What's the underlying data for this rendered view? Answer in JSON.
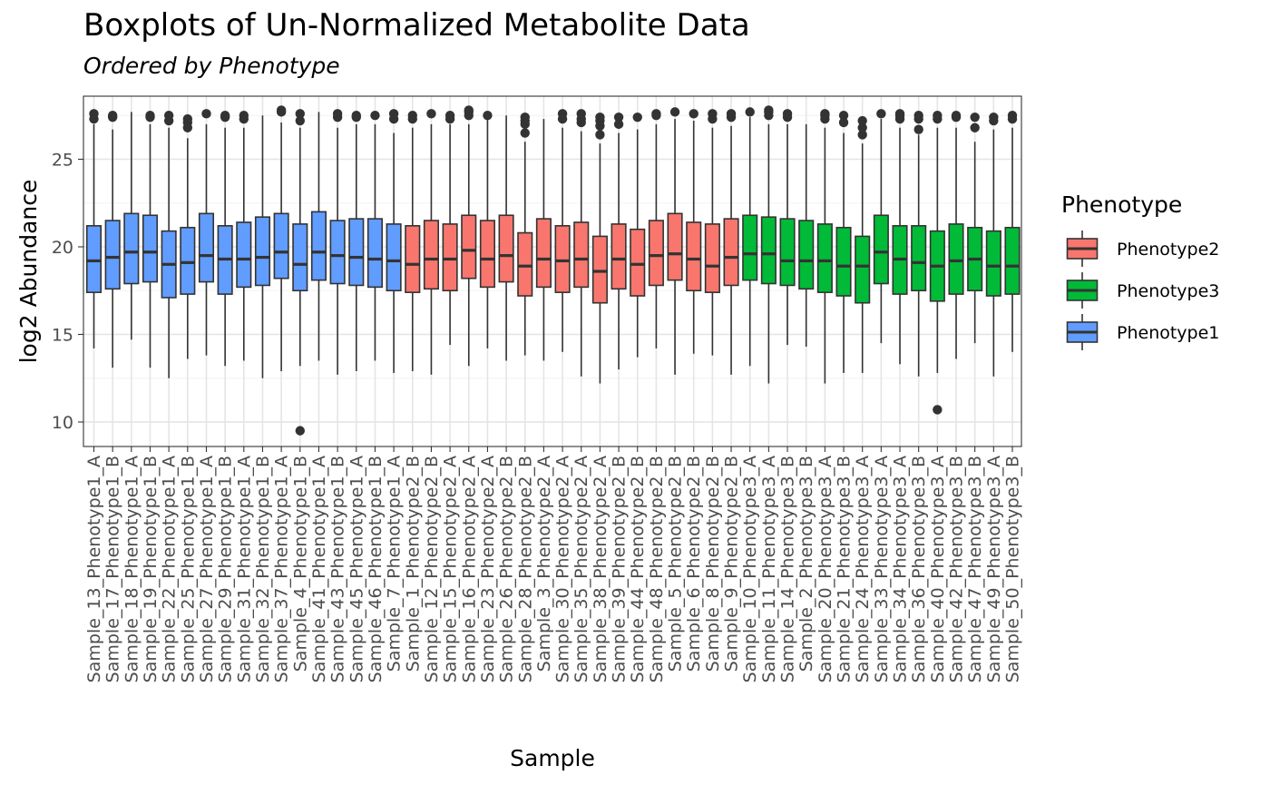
{
  "chart_data": {
    "type": "box",
    "title": "Boxplots of Un-Normalized Metabolite Data",
    "subtitle": "Ordered by  Phenotype",
    "xlabel": "Sample",
    "ylabel": "log2 Abundance",
    "ylim": [
      8.6,
      28.6
    ],
    "yticks": [
      10,
      15,
      20,
      25
    ],
    "grid": true,
    "legend": {
      "title": "Phenotype",
      "position": "right",
      "entries": [
        {
          "label": "Phenotype2",
          "color": "#F8766D"
        },
        {
          "label": "Phenotype3",
          "color": "#00BA38"
        },
        {
          "label": "Phenotype1",
          "color": "#619CFF"
        }
      ]
    },
    "colors": {
      "Phenotype1": "#619CFF",
      "Phenotype2": "#F8766D",
      "Phenotype3": "#00BA38"
    },
    "boxes": [
      {
        "label": "Sample_13_Phenotype1_A",
        "group": "Phenotype1",
        "min": 14.2,
        "q1": 17.4,
        "median": 19.2,
        "q3": 21.2,
        "max": 27.0,
        "outliers": [
          27.3,
          27.6
        ]
      },
      {
        "label": "Sample_17_Phenotype1_B",
        "group": "Phenotype1",
        "min": 13.1,
        "q1": 17.6,
        "median": 19.4,
        "q3": 21.5,
        "max": 26.7,
        "outliers": [
          27.4,
          27.5
        ]
      },
      {
        "label": "Sample_18_Phenotype1_A",
        "group": "Phenotype1",
        "min": 14.7,
        "q1": 17.9,
        "median": 19.7,
        "q3": 21.9,
        "max": 27.7,
        "outliers": []
      },
      {
        "label": "Sample_19_Phenotype1_B",
        "group": "Phenotype1",
        "min": 13.1,
        "q1": 18.0,
        "median": 19.7,
        "q3": 21.8,
        "max": 27.0,
        "outliers": [
          27.4,
          27.5
        ]
      },
      {
        "label": "Sample_22_Phenotype1_A",
        "group": "Phenotype1",
        "min": 12.5,
        "q1": 17.1,
        "median": 19.0,
        "q3": 20.9,
        "max": 26.8,
        "outliers": [
          27.2,
          27.5
        ]
      },
      {
        "label": "Sample_25_Phenotype1_B",
        "group": "Phenotype1",
        "min": 13.6,
        "q1": 17.3,
        "median": 19.1,
        "q3": 21.1,
        "max": 26.2,
        "outliers": [
          26.8,
          27.1,
          27.3
        ]
      },
      {
        "label": "Sample_27_Phenotype1_A",
        "group": "Phenotype1",
        "min": 13.8,
        "q1": 18.0,
        "median": 19.5,
        "q3": 21.9,
        "max": 27.0,
        "outliers": [
          27.6
        ]
      },
      {
        "label": "Sample_29_Phenotype1_B",
        "group": "Phenotype1",
        "min": 13.2,
        "q1": 17.3,
        "median": 19.3,
        "q3": 21.2,
        "max": 26.8,
        "outliers": [
          27.4,
          27.5
        ]
      },
      {
        "label": "Sample_31_Phenotype1_A",
        "group": "Phenotype1",
        "min": 13.5,
        "q1": 17.7,
        "median": 19.3,
        "q3": 21.4,
        "max": 26.8,
        "outliers": [
          27.3,
          27.5
        ]
      },
      {
        "label": "Sample_32_Phenotype1_B",
        "group": "Phenotype1",
        "min": 12.5,
        "q1": 17.8,
        "median": 19.4,
        "q3": 21.7,
        "max": 27.5,
        "outliers": []
      },
      {
        "label": "Sample_37_Phenotype1_A",
        "group": "Phenotype1",
        "min": 12.9,
        "q1": 18.2,
        "median": 19.7,
        "q3": 21.9,
        "max": 27.1,
        "outliers": [
          27.7,
          27.8
        ]
      },
      {
        "label": "Sample_4_Phenotype1_B",
        "group": "Phenotype1",
        "min": 13.2,
        "q1": 17.5,
        "median": 19.0,
        "q3": 21.3,
        "max": 26.8,
        "outliers": [
          9.5,
          27.2,
          27.6
        ]
      },
      {
        "label": "Sample_41_Phenotype1_A",
        "group": "Phenotype1",
        "min": 13.5,
        "q1": 18.1,
        "median": 19.7,
        "q3": 22.0,
        "max": 27.7,
        "outliers": []
      },
      {
        "label": "Sample_43_Phenotype1_B",
        "group": "Phenotype1",
        "min": 12.7,
        "q1": 17.9,
        "median": 19.5,
        "q3": 21.5,
        "max": 26.8,
        "outliers": [
          27.4,
          27.6
        ]
      },
      {
        "label": "Sample_45_Phenotype1_A",
        "group": "Phenotype1",
        "min": 12.9,
        "q1": 17.8,
        "median": 19.4,
        "q3": 21.6,
        "max": 27.0,
        "outliers": [
          27.4,
          27.5
        ]
      },
      {
        "label": "Sample_46_Phenotype1_B",
        "group": "Phenotype1",
        "min": 13.5,
        "q1": 17.7,
        "median": 19.3,
        "q3": 21.6,
        "max": 27.0,
        "outliers": [
          27.5
        ]
      },
      {
        "label": "Sample_7_Phenotype1_A",
        "group": "Phenotype1",
        "min": 12.8,
        "q1": 17.5,
        "median": 19.2,
        "q3": 21.3,
        "max": 26.5,
        "outliers": [
          27.3,
          27.6
        ]
      },
      {
        "label": "Sample_1_Phenotype2_B",
        "group": "Phenotype2",
        "min": 12.9,
        "q1": 17.4,
        "median": 19.0,
        "q3": 21.2,
        "max": 26.8,
        "outliers": [
          27.3,
          27.5
        ]
      },
      {
        "label": "Sample_12_Phenotype2_B",
        "group": "Phenotype2",
        "min": 12.7,
        "q1": 17.6,
        "median": 19.3,
        "q3": 21.5,
        "max": 27.0,
        "outliers": [
          27.6
        ]
      },
      {
        "label": "Sample_15_Phenotype2_A",
        "group": "Phenotype2",
        "min": 14.4,
        "q1": 17.5,
        "median": 19.3,
        "q3": 21.3,
        "max": 27.0,
        "outliers": [
          27.3,
          27.5
        ]
      },
      {
        "label": "Sample_16_Phenotype2_A",
        "group": "Phenotype2",
        "min": 13.2,
        "q1": 18.2,
        "median": 19.8,
        "q3": 21.8,
        "max": 27.0,
        "outliers": [
          27.5,
          27.7,
          27.8
        ]
      },
      {
        "label": "Sample_23_Phenotype2_A",
        "group": "Phenotype2",
        "min": 14.2,
        "q1": 17.7,
        "median": 19.3,
        "q3": 21.5,
        "max": 27.3,
        "outliers": [
          27.5
        ]
      },
      {
        "label": "Sample_26_Phenotype2_B",
        "group": "Phenotype2",
        "min": 13.5,
        "q1": 18.0,
        "median": 19.5,
        "q3": 21.8,
        "max": 27.5,
        "outliers": []
      },
      {
        "label": "Sample_28_Phenotype2_B",
        "group": "Phenotype2",
        "min": 13.8,
        "q1": 17.2,
        "median": 18.9,
        "q3": 20.8,
        "max": 26.0,
        "outliers": [
          26.5,
          27.0,
          27.2,
          27.4
        ]
      },
      {
        "label": "Sample_3_Phenotype2_A",
        "group": "Phenotype2",
        "min": 13.5,
        "q1": 17.7,
        "median": 19.3,
        "q3": 21.6,
        "max": 27.3,
        "outliers": []
      },
      {
        "label": "Sample_30_Phenotype2_A",
        "group": "Phenotype2",
        "min": 14.0,
        "q1": 17.4,
        "median": 19.2,
        "q3": 21.2,
        "max": 26.8,
        "outliers": [
          27.3,
          27.6
        ]
      },
      {
        "label": "Sample_35_Phenotype2_A",
        "group": "Phenotype2",
        "min": 12.6,
        "q1": 17.7,
        "median": 19.3,
        "q3": 21.4,
        "max": 26.6,
        "outliers": [
          27.1,
          27.3,
          27.6
        ]
      },
      {
        "label": "Sample_38_Phenotype2_A",
        "group": "Phenotype2",
        "min": 12.2,
        "q1": 16.8,
        "median": 18.6,
        "q3": 20.6,
        "max": 25.9,
        "outliers": [
          26.4,
          26.9,
          27.2,
          27.4
        ]
      },
      {
        "label": "Sample_39_Phenotype2_B",
        "group": "Phenotype2",
        "min": 13.0,
        "q1": 17.6,
        "median": 19.3,
        "q3": 21.3,
        "max": 26.5,
        "outliers": [
          27.0,
          27.4
        ]
      },
      {
        "label": "Sample_44_Phenotype2_B",
        "group": "Phenotype2",
        "min": 13.7,
        "q1": 17.2,
        "median": 19.0,
        "q3": 21.0,
        "max": 26.7,
        "outliers": [
          27.4
        ]
      },
      {
        "label": "Sample_48_Phenotype2_B",
        "group": "Phenotype2",
        "min": 14.2,
        "q1": 17.8,
        "median": 19.5,
        "q3": 21.5,
        "max": 27.0,
        "outliers": [
          27.5,
          27.6
        ]
      },
      {
        "label": "Sample_5_Phenotype2_B",
        "group": "Phenotype2",
        "min": 12.7,
        "q1": 18.1,
        "median": 19.6,
        "q3": 21.9,
        "max": 27.3,
        "outliers": [
          27.7
        ]
      },
      {
        "label": "Sample_6_Phenotype2_B",
        "group": "Phenotype2",
        "min": 13.9,
        "q1": 17.5,
        "median": 19.3,
        "q3": 21.4,
        "max": 27.2,
        "outliers": [
          27.6
        ]
      },
      {
        "label": "Sample_8_Phenotype2_B",
        "group": "Phenotype2",
        "min": 13.8,
        "q1": 17.4,
        "median": 18.9,
        "q3": 21.3,
        "max": 26.8,
        "outliers": [
          27.3,
          27.6
        ]
      },
      {
        "label": "Sample_9_Phenotype2_B",
        "group": "Phenotype2",
        "min": 12.7,
        "q1": 17.8,
        "median": 19.4,
        "q3": 21.6,
        "max": 26.9,
        "outliers": [
          27.4,
          27.6
        ]
      },
      {
        "label": "Sample_10_Phenotype3_A",
        "group": "Phenotype3",
        "min": 13.2,
        "q1": 18.1,
        "median": 19.6,
        "q3": 21.8,
        "max": 27.4,
        "outliers": [
          27.7
        ]
      },
      {
        "label": "Sample_11_Phenotype3_A",
        "group": "Phenotype3",
        "min": 12.2,
        "q1": 17.9,
        "median": 19.6,
        "q3": 21.7,
        "max": 27.0,
        "outliers": [
          27.5,
          27.7,
          27.8
        ]
      },
      {
        "label": "Sample_14_Phenotype3_B",
        "group": "Phenotype3",
        "min": 14.4,
        "q1": 17.8,
        "median": 19.2,
        "q3": 21.6,
        "max": 27.0,
        "outliers": [
          27.4,
          27.6
        ]
      },
      {
        "label": "Sample_2_Phenotype3_B",
        "group": "Phenotype3",
        "min": 14.3,
        "q1": 17.6,
        "median": 19.2,
        "q3": 21.5,
        "max": 27.0,
        "outliers": []
      },
      {
        "label": "Sample_20_Phenotype3_A",
        "group": "Phenotype3",
        "min": 12.2,
        "q1": 17.4,
        "median": 19.2,
        "q3": 21.3,
        "max": 26.8,
        "outliers": [
          27.3,
          27.5,
          27.6
        ]
      },
      {
        "label": "Sample_21_Phenotype3_B",
        "group": "Phenotype3",
        "min": 12.8,
        "q1": 17.2,
        "median": 18.9,
        "q3": 21.1,
        "max": 26.5,
        "outliers": [
          27.1,
          27.5
        ]
      },
      {
        "label": "Sample_24_Phenotype3_A",
        "group": "Phenotype3",
        "min": 12.8,
        "q1": 16.8,
        "median": 18.9,
        "q3": 20.6,
        "max": 25.9,
        "outliers": [
          26.4,
          26.8,
          27.2
        ]
      },
      {
        "label": "Sample_33_Phenotype3_A",
        "group": "Phenotype3",
        "min": 14.5,
        "q1": 17.9,
        "median": 19.7,
        "q3": 21.8,
        "max": 27.3,
        "outliers": [
          27.6
        ]
      },
      {
        "label": "Sample_34_Phenotype3_A",
        "group": "Phenotype3",
        "min": 13.3,
        "q1": 17.3,
        "median": 19.3,
        "q3": 21.2,
        "max": 26.8,
        "outliers": [
          27.3,
          27.5,
          27.6
        ]
      },
      {
        "label": "Sample_36_Phenotype3_B",
        "group": "Phenotype3",
        "min": 12.6,
        "q1": 17.5,
        "median": 19.1,
        "q3": 21.2,
        "max": 26.4,
        "outliers": [
          26.7,
          27.3,
          27.5
        ]
      },
      {
        "label": "Sample_40_Phenotype3_A",
        "group": "Phenotype3",
        "min": 12.8,
        "q1": 16.9,
        "median": 18.9,
        "q3": 20.9,
        "max": 26.8,
        "outliers": [
          10.7,
          27.3,
          27.5
        ]
      },
      {
        "label": "Sample_42_Phenotype3_B",
        "group": "Phenotype3",
        "min": 13.6,
        "q1": 17.3,
        "median": 19.2,
        "q3": 21.3,
        "max": 26.8,
        "outliers": [
          27.4,
          27.5
        ]
      },
      {
        "label": "Sample_47_Phenotype3_B",
        "group": "Phenotype3",
        "min": 14.5,
        "q1": 17.5,
        "median": 19.3,
        "q3": 21.1,
        "max": 26.0,
        "outliers": [
          26.8,
          27.4
        ]
      },
      {
        "label": "Sample_49_Phenotype3_A",
        "group": "Phenotype3",
        "min": 12.6,
        "q1": 17.2,
        "median": 18.9,
        "q3": 20.9,
        "max": 26.7,
        "outliers": [
          27.2,
          27.4
        ]
      },
      {
        "label": "Sample_50_Phenotype3_B",
        "group": "Phenotype3",
        "min": 14.0,
        "q1": 17.3,
        "median": 18.9,
        "q3": 21.1,
        "max": 26.8,
        "outliers": [
          27.3,
          27.5
        ]
      }
    ]
  }
}
